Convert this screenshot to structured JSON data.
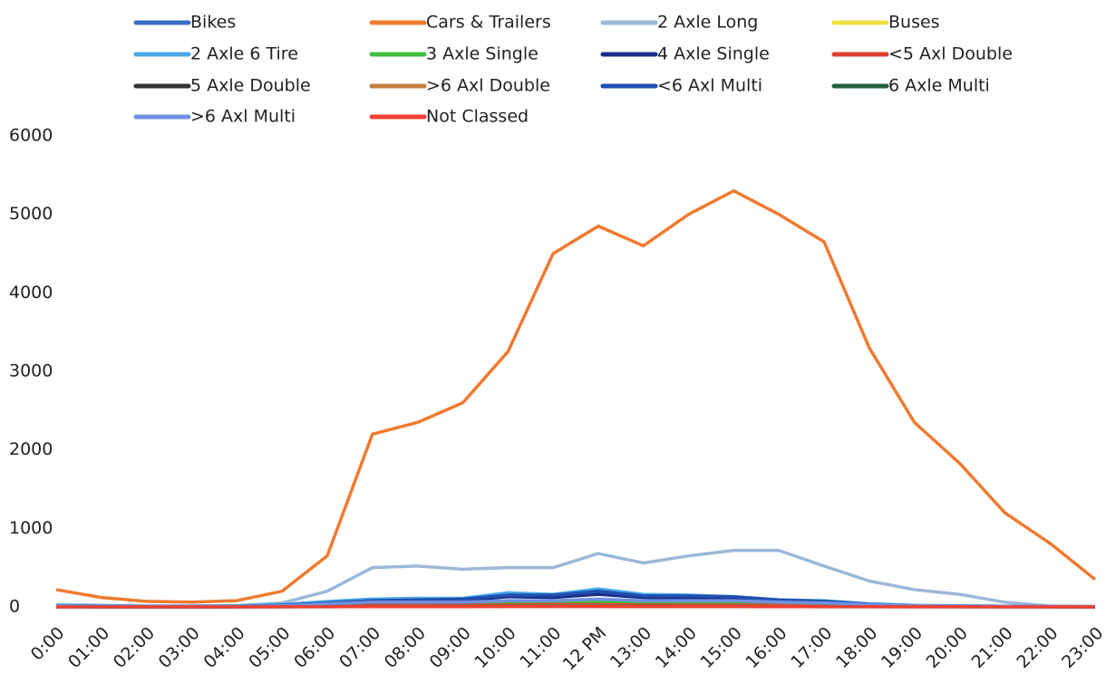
{
  "chart_data": {
    "type": "line",
    "categories": [
      "0:00",
      "01:00",
      "02:00",
      "03:00",
      "04:00",
      "05:00",
      "06:00",
      "07:00",
      "08:00",
      "09:00",
      "10:00",
      "11:00",
      "12 PM",
      "13:00",
      "14:00",
      "15:00",
      "16:00",
      "17:00",
      "18:00",
      "19:00",
      "20:00",
      "21:00",
      "22:00",
      "23:00"
    ],
    "ylim": [
      0,
      6000
    ],
    "yticks": [
      0,
      1000,
      2000,
      3000,
      4000,
      5000,
      6000
    ],
    "grid": false,
    "legend": "top",
    "series": [
      {
        "name": "Bikes",
        "color": "#3a6fc4",
        "values": [
          5,
          3,
          2,
          2,
          3,
          8,
          20,
          30,
          30,
          30,
          35,
          40,
          45,
          40,
          40,
          40,
          35,
          30,
          20,
          15,
          10,
          8,
          5,
          3
        ]
      },
      {
        "name": "Cars & Trailers",
        "color": "#f07a30",
        "values": [
          220,
          120,
          70,
          60,
          80,
          200,
          650,
          2200,
          2350,
          2600,
          3250,
          4500,
          4850,
          4600,
          5000,
          5300,
          5000,
          4650,
          3300,
          2350,
          1830,
          1200,
          810,
          350
        ]
      },
      {
        "name": "2 Axle Long",
        "color": "#9ab8d8",
        "values": [
          30,
          20,
          10,
          10,
          15,
          50,
          200,
          500,
          520,
          480,
          500,
          500,
          680,
          560,
          650,
          720,
          720,
          520,
          330,
          220,
          160,
          60,
          10,
          0
        ]
      },
      {
        "name": "Buses",
        "color": "#f0e040",
        "values": [
          2,
          1,
          1,
          1,
          2,
          5,
          10,
          15,
          15,
          15,
          15,
          20,
          20,
          18,
          18,
          15,
          15,
          12,
          10,
          5,
          4,
          3,
          2,
          1
        ]
      },
      {
        "name": "2 Axle 6 Tire",
        "color": "#4aa8e8",
        "values": [
          20,
          15,
          10,
          10,
          15,
          30,
          70,
          100,
          110,
          110,
          180,
          160,
          230,
          160,
          150,
          130,
          90,
          80,
          40,
          20,
          15,
          10,
          5,
          3
        ]
      },
      {
        "name": "3 Axle Single",
        "color": "#40c040",
        "values": [
          3,
          2,
          2,
          2,
          3,
          10,
          25,
          40,
          45,
          50,
          55,
          60,
          65,
          55,
          50,
          45,
          35,
          25,
          15,
          8,
          5,
          4,
          3,
          2
        ]
      },
      {
        "name": "4 Axle Single",
        "color": "#1a2f8a",
        "values": [
          2,
          1,
          1,
          1,
          2,
          8,
          30,
          60,
          70,
          80,
          130,
          120,
          160,
          120,
          110,
          100,
          70,
          50,
          25,
          10,
          5,
          3,
          2,
          1
        ]
      },
      {
        "name": "<5 Axl Double",
        "color": "#e04030",
        "values": [
          5,
          4,
          3,
          3,
          4,
          8,
          15,
          25,
          25,
          25,
          25,
          30,
          30,
          25,
          25,
          25,
          20,
          15,
          12,
          8,
          6,
          5,
          4,
          3
        ]
      },
      {
        "name": "5 Axle Double",
        "color": "#333333",
        "values": [
          3,
          2,
          2,
          2,
          2,
          4,
          8,
          10,
          10,
          12,
          12,
          12,
          12,
          12,
          10,
          10,
          8,
          6,
          5,
          4,
          3,
          3,
          2,
          2
        ]
      },
      {
        "name": ">6 Axl Double",
        "color": "#c08040",
        "values": [
          1,
          1,
          1,
          1,
          1,
          2,
          5,
          10,
          12,
          12,
          15,
          15,
          15,
          12,
          12,
          12,
          10,
          8,
          5,
          3,
          2,
          1,
          1,
          1
        ]
      },
      {
        "name": "<6 Axl Multi",
        "color": "#2050b0",
        "values": [
          10,
          8,
          6,
          6,
          8,
          20,
          50,
          80,
          90,
          100,
          150,
          150,
          200,
          140,
          140,
          130,
          90,
          70,
          35,
          15,
          10,
          8,
          6,
          4
        ]
      },
      {
        "name": "6 Axle Multi",
        "color": "#206040",
        "values": [
          1,
          1,
          1,
          1,
          1,
          2,
          4,
          6,
          6,
          6,
          8,
          8,
          8,
          6,
          6,
          6,
          5,
          4,
          3,
          2,
          1,
          1,
          1,
          1
        ]
      },
      {
        "name": ">6 Axl Multi",
        "color": "#7090e0",
        "values": [
          8,
          6,
          5,
          5,
          6,
          15,
          40,
          60,
          60,
          60,
          80,
          80,
          100,
          80,
          80,
          80,
          60,
          50,
          30,
          15,
          10,
          8,
          6,
          4
        ]
      },
      {
        "name": "Not Classed",
        "color": "#f04030",
        "values": [
          0,
          0,
          0,
          0,
          0,
          1,
          2,
          3,
          3,
          3,
          4,
          4,
          5,
          4,
          4,
          4,
          3,
          2,
          2,
          1,
          1,
          0,
          0,
          0
        ]
      }
    ]
  }
}
